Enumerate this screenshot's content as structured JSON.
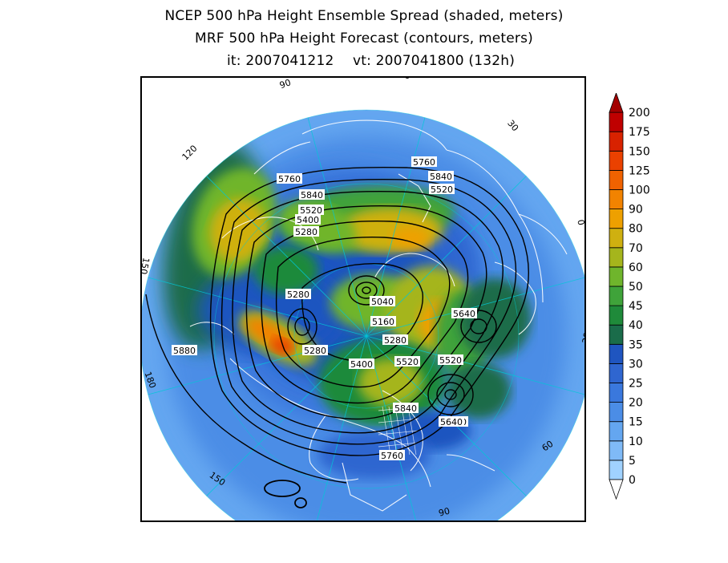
{
  "title": {
    "line1": "NCEP 500 hPa Height Ensemble Spread (shaded, meters)",
    "line2": "MRF 500 hPa Height Forecast (contours, meters)",
    "init": "it: 2007041212",
    "valid": "vt: 2007041800 (132h)"
  },
  "colorbar": {
    "levels": [
      "0",
      "5",
      "10",
      "15",
      "20",
      "25",
      "30",
      "35",
      "40",
      "45",
      "50",
      "60",
      "70",
      "80",
      "90",
      "100",
      "125",
      "150",
      "175",
      "200"
    ],
    "colors": [
      "#a0d2ff",
      "#7fbaf7",
      "#64a6f0",
      "#4b8de6",
      "#3a78dd",
      "#2f66d0",
      "#1f55c0",
      "#1a6c4a",
      "#1f8a3a",
      "#3fa33a",
      "#6fb52c",
      "#a5b51c",
      "#cfb010",
      "#eea000",
      "#f28300",
      "#f06200",
      "#ea4100",
      "#d82200",
      "#bf0000",
      "#a30000"
    ]
  },
  "map": {
    "meridian_labels": [
      "60",
      "30",
      "0",
      "30",
      "60",
      "90",
      "120",
      "150",
      "180",
      "150",
      "120",
      "90"
    ],
    "contour_labels": [
      "5760",
      "5840",
      "5520",
      "5760",
      "5840",
      "5520",
      "5400",
      "5280",
      "5280",
      "5040",
      "5160",
      "5280",
      "5280",
      "5400",
      "5520",
      "5520",
      "5640",
      "5640",
      "5840",
      "5640",
      "5760",
      "5880"
    ],
    "colors": {
      "land_lines": "#ffffff",
      "contours": "#000000",
      "graticule": "#00c8d8"
    }
  }
}
